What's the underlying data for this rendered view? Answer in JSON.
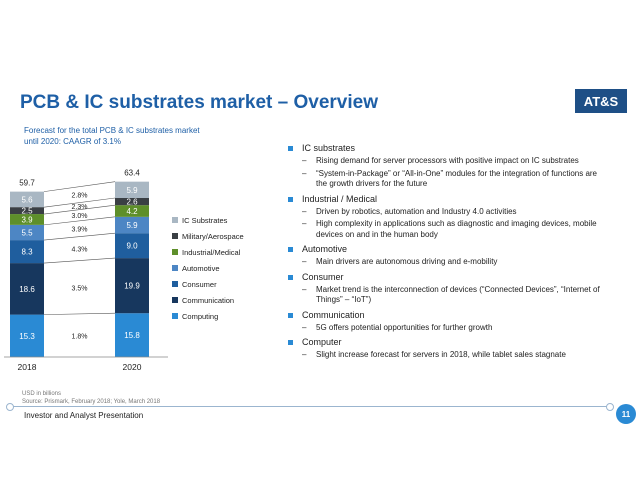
{
  "slide": {
    "title": "PCB & IC substrates market – Overview",
    "logo": "AT&S",
    "subtitle_line1": "Forecast for the total PCB & IC substrates market",
    "subtitle_line2": "until 2020: CAAGR of 3.1%",
    "footer": "Investor and Analyst Presentation",
    "page_number": "11"
  },
  "colors": {
    "title": "#1e5fa6",
    "accent": "#2a8ad4",
    "logo_bg": "#1e4f86"
  },
  "bullets": [
    {
      "label": "IC substrates",
      "subs": [
        "Rising demand for server processors with positive impact on IC substrates",
        "“System-in-Package” or “All-in-One” modules for the integration of functions are the growth drivers for the future"
      ]
    },
    {
      "label": "Industrial / Medical",
      "subs": [
        "Driven by robotics, automation and Industry 4.0 activities",
        "High complexity in applications such as diagnostic and imaging devices, mobile devices on and in the human body"
      ]
    },
    {
      "label": "Automotive",
      "subs": [
        "Main drivers are autonomous driving and e-mobility"
      ]
    },
    {
      "label": "Consumer",
      "subs": [
        "Market trend is the interconnection of devices (“Connected Devices”, “Internet of Things” – “IoT”)"
      ]
    },
    {
      "label": "Communication",
      "subs": [
        "5G offers potential opportunities for further growth"
      ]
    },
    {
      "label": "Computer",
      "subs": [
        "Slight increase forecast for servers in 2018, while tablet sales stagnate"
      ]
    }
  ],
  "chart_data": {
    "type": "bar",
    "stacked": true,
    "categories": [
      "2018",
      "2020"
    ],
    "totals": [
      "59.7",
      "63.4"
    ],
    "series": [
      {
        "name": "Computing",
        "color": "#2a8ad4",
        "values": [
          15.3,
          15.8
        ]
      },
      {
        "name": "Communication",
        "color": "#17375e",
        "values": [
          18.6,
          19.9
        ]
      },
      {
        "name": "Consumer",
        "color": "#1f5e9e",
        "values": [
          8.3,
          9.0
        ]
      },
      {
        "name": "Automotive",
        "color": "#4d86c4",
        "values": [
          5.5,
          5.9
        ]
      },
      {
        "name": "Industrial/Medical",
        "color": "#5e8f2a",
        "values": [
          3.9,
          4.2
        ]
      },
      {
        "name": "Military/Aerospace",
        "color": "#3a3f44",
        "values": [
          2.5,
          2.6
        ]
      },
      {
        "name": "IC Substrates",
        "color": "#a9b7c3",
        "values": [
          5.6,
          5.9
        ]
      }
    ],
    "growth_labels": [
      "1.8%",
      "3.5%",
      "4.3%",
      "3.9%",
      "3.0%",
      "2.3%",
      "2.8%"
    ],
    "legend_order": [
      "IC Substrates",
      "Military/Aerospace",
      "Industrial/Medical",
      "Automotive",
      "Consumer",
      "Communication",
      "Computing"
    ],
    "unit_note": "USD in billions",
    "source": "Source: Prismark, February 2018; Yole, March 2018"
  }
}
